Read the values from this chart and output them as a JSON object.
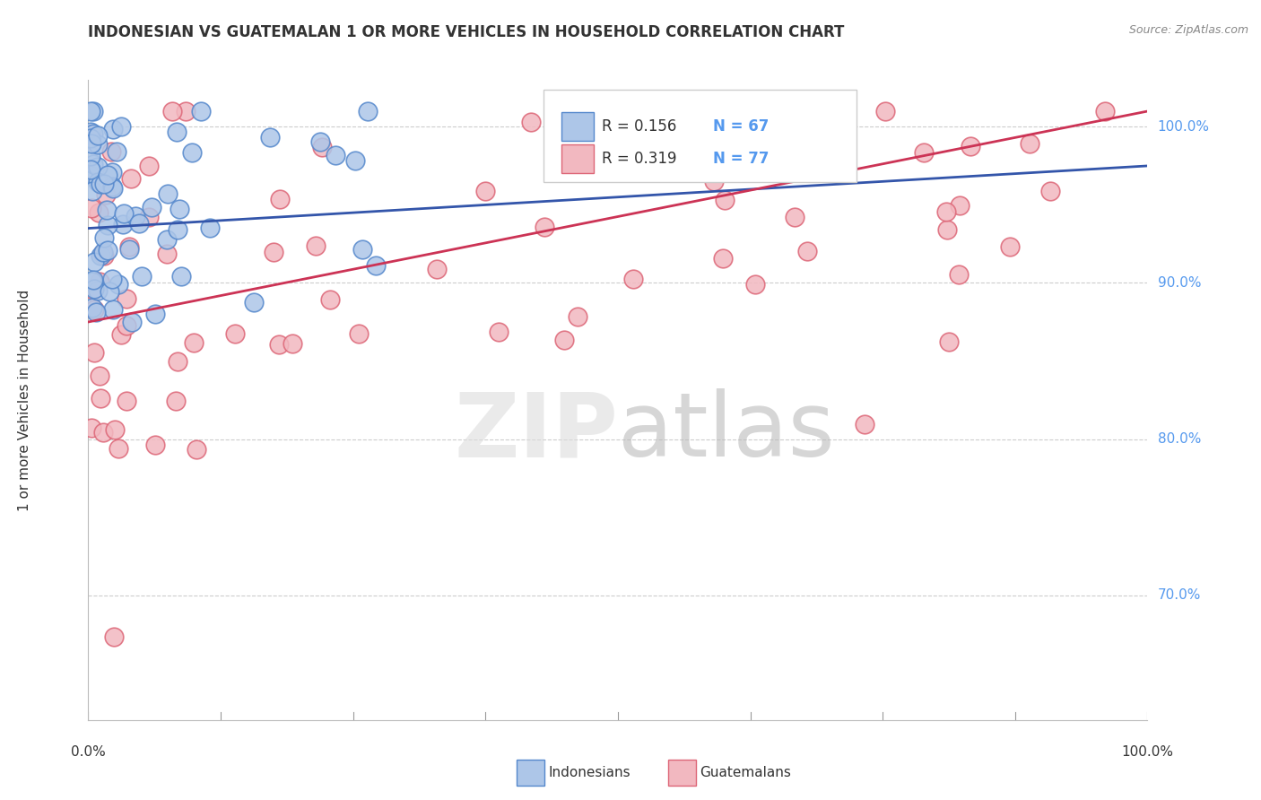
{
  "title": "INDONESIAN VS GUATEMALAN 1 OR MORE VEHICLES IN HOUSEHOLD CORRELATION CHART",
  "source": "Source: ZipAtlas.com",
  "ylabel": "1 or more Vehicles in Household",
  "xlim": [
    0,
    100
  ],
  "ylim": [
    62,
    103
  ],
  "yticks": [
    70,
    80,
    90,
    100
  ],
  "ytick_labels": [
    "70.0%",
    "80.0%",
    "90.0%",
    "100.0%"
  ],
  "xtick_positions": [
    0,
    12.5,
    25,
    37.5,
    50,
    62.5,
    75,
    87.5,
    100
  ],
  "bg_color": "#ffffff",
  "grid_color": "#cccccc",
  "indonesian_color": "#adc6e8",
  "guatemalan_color": "#f2b8c0",
  "indonesian_edge": "#5588cc",
  "guatemalan_edge": "#dd6677",
  "blue_line_color": "#3355aa",
  "pink_line_color": "#cc3355",
  "legend_R1": "R = 0.156",
  "legend_N1": "N = 67",
  "legend_R2": "R = 0.319",
  "legend_N2": "N = 77",
  "legend_label1": "Indonesians",
  "legend_label2": "Guatemalans",
  "title_color": "#333333",
  "source_color": "#888888",
  "axis_label_color": "#333333",
  "ytick_color": "#5599ee",
  "xtick_label_color": "#333333",
  "blue_line_start_y": 93.5,
  "blue_line_end_y": 97.5,
  "pink_line_start_y": 87.5,
  "pink_line_end_y": 101.0
}
